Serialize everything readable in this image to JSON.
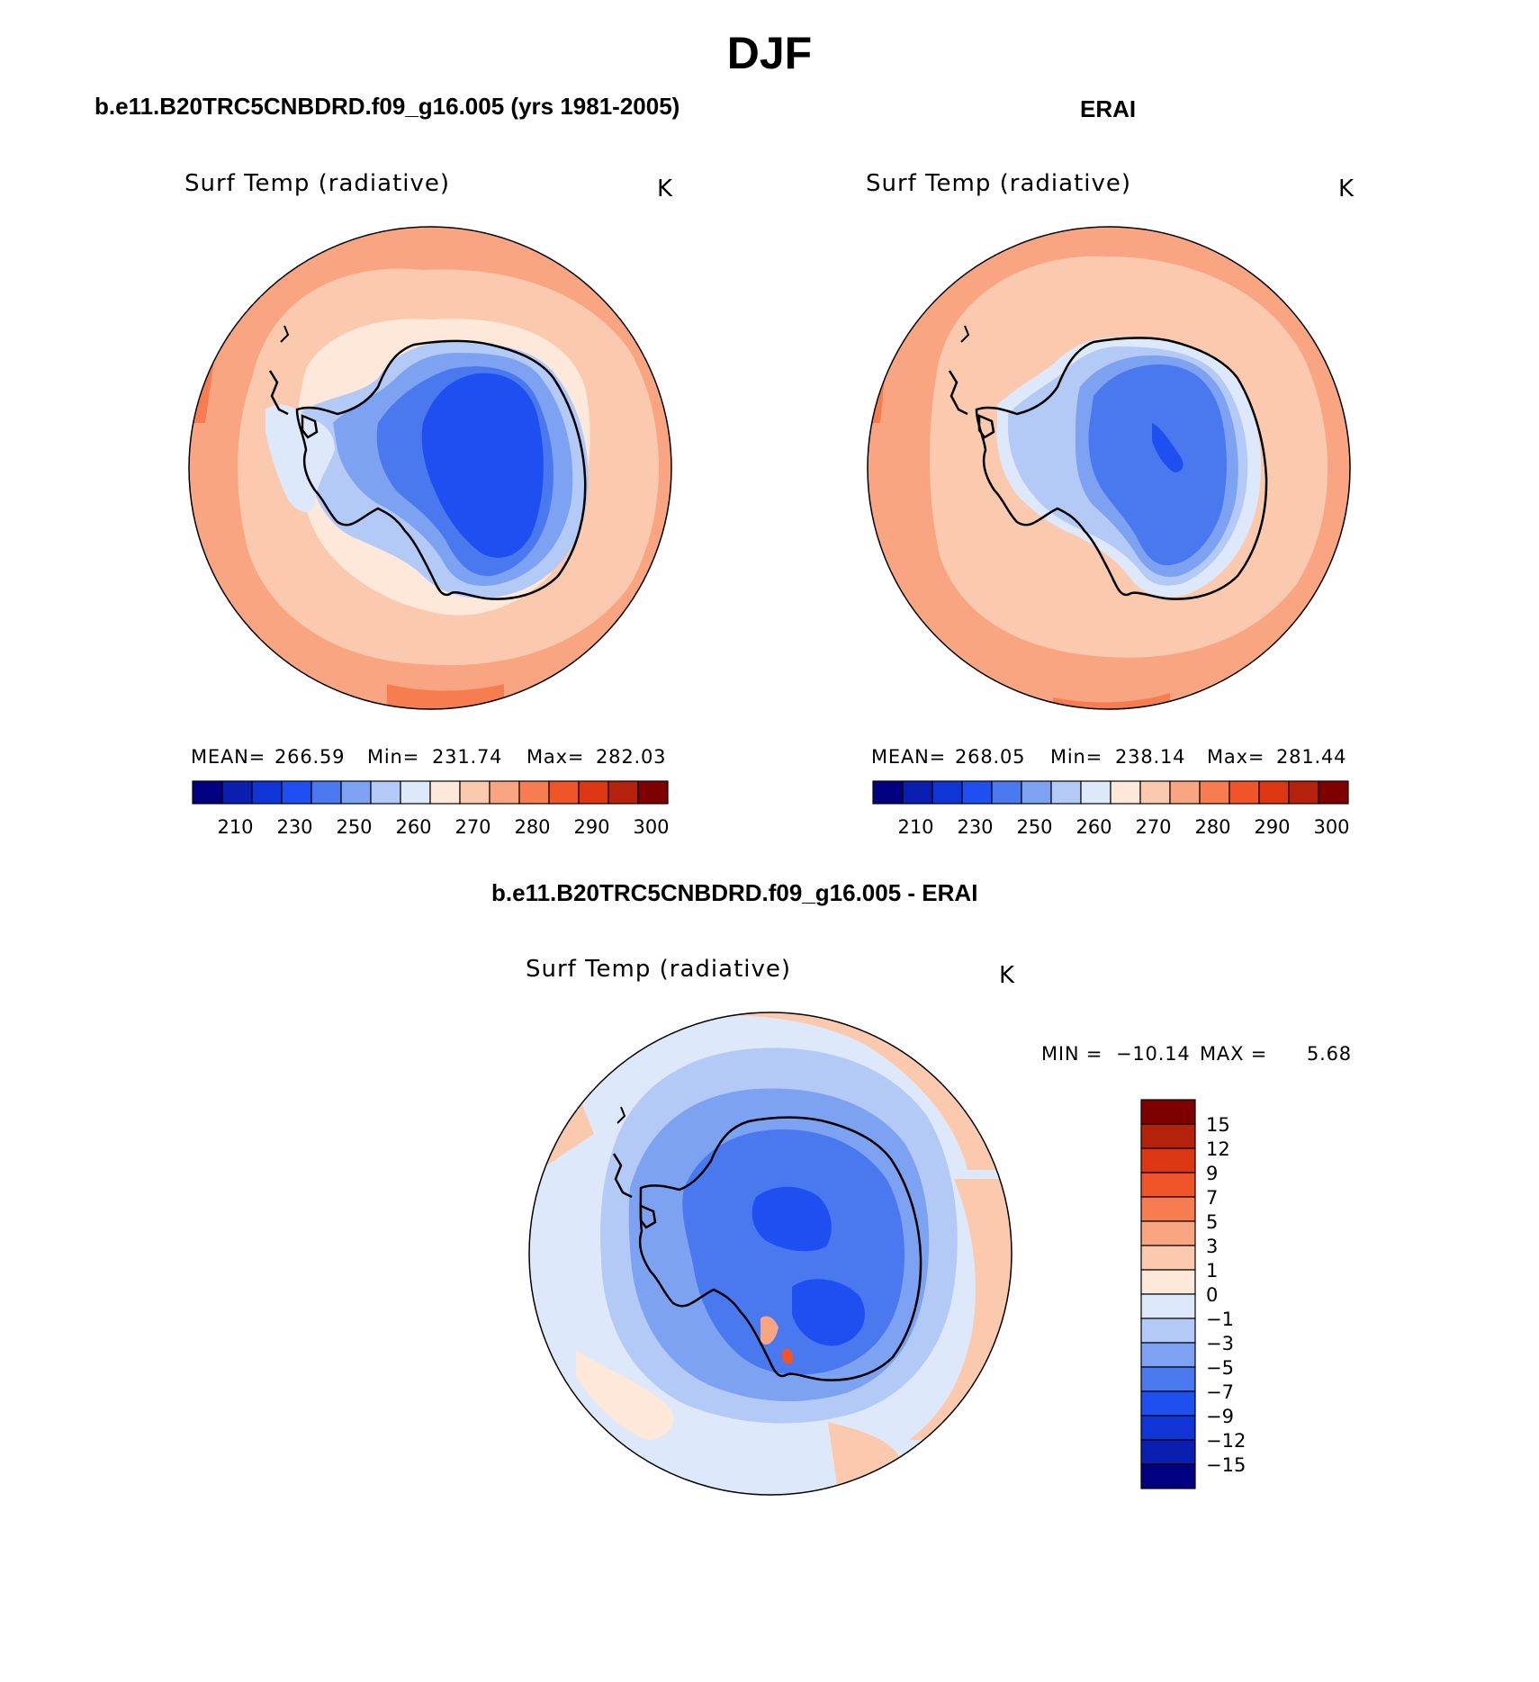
{
  "page": {
    "title": "DJF"
  },
  "colors": {
    "abs_palette": [
      "#000080",
      "#0a1fb0",
      "#0f35d6",
      "#1f4ff0",
      "#4a79ef",
      "#7ea2f2",
      "#b3c9f6",
      "#dde9fb",
      "#fde8da",
      "#fbc9ae",
      "#f9a581",
      "#f77d50",
      "#f05529",
      "#dc3613",
      "#b5220c",
      "#7f0000"
    ],
    "diff_palette": [
      "#000080",
      "#0a1fb0",
      "#0f35d6",
      "#1f4ff0",
      "#4a79ef",
      "#7ea2f2",
      "#b3c9f6",
      "#dde9fb",
      "#fde8da",
      "#fbc9ae",
      "#f9a581",
      "#f77d50",
      "#f05529",
      "#dc3613",
      "#b5220c",
      "#7f0000"
    ]
  },
  "panels": [
    {
      "heading": "b.e11.B20TRC5CNBDRD.f09_g16.005 (yrs 1981-2005)",
      "variable": "Surf Temp (radiative)",
      "units": "K",
      "stats": {
        "mean_label": "MEAN=",
        "mean": "266.59",
        "min_label": "Min=",
        "min": "231.74",
        "max_label": "Max=",
        "max": "282.03"
      },
      "colorbar_ticks": [
        "210",
        "230",
        "250",
        "260",
        "270",
        "280",
        "290",
        "300"
      ]
    },
    {
      "heading": "ERAI",
      "variable": "Surf Temp (radiative)",
      "units": "K",
      "stats": {
        "mean_label": "MEAN=",
        "mean": "268.05",
        "min_label": "Min=",
        "min": "238.14",
        "max_label": "Max=",
        "max": "281.44"
      },
      "colorbar_ticks": [
        "210",
        "230",
        "250",
        "260",
        "270",
        "280",
        "290",
        "300"
      ]
    }
  ],
  "difference": {
    "heading": "b.e11.B20TRC5CNBDRD.f09_g16.005 - ERAI",
    "variable": "Surf Temp (radiative)",
    "units": "K",
    "min_label": "MIN =",
    "min": "−10.14",
    "max_label": "MAX =",
    "max": "5.68",
    "colorbar_ticks": [
      "15",
      "12",
      "9",
      "7",
      "5",
      "3",
      "1",
      "0",
      "−1",
      "−3",
      "−5",
      "−7",
      "−9",
      "−12",
      "−15"
    ]
  }
}
